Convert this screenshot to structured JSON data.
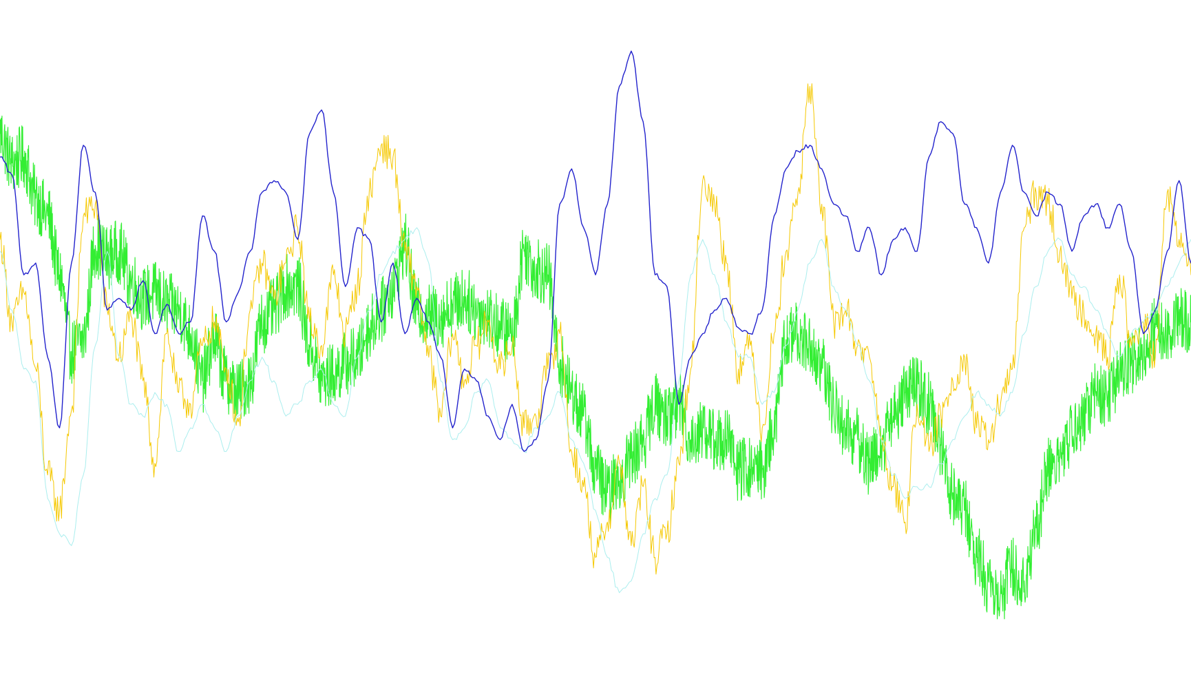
{
  "chart_data": {
    "type": "line",
    "title": "",
    "xlabel": "",
    "ylabel": "",
    "grid": false,
    "legend": "none",
    "xlim": [
      0,
      1000
    ],
    "ylim": [
      0,
      100
    ],
    "series": [
      {
        "color": "#33ee33",
        "x": [
          0,
          10,
          20,
          30,
          40,
          50,
          60,
          70,
          80,
          90,
          100,
          110,
          120,
          130,
          140,
          150,
          160,
          170,
          180,
          190,
          200,
          210,
          220,
          230,
          240,
          250,
          260,
          270,
          280,
          290,
          300,
          310,
          320,
          330,
          340,
          350,
          360,
          370,
          380,
          390,
          400,
          410,
          420,
          430,
          440,
          450,
          460,
          470,
          480,
          490,
          500,
          510,
          520,
          530,
          540,
          550,
          560,
          570,
          580,
          590,
          600,
          610,
          620,
          630,
          640,
          650,
          660,
          670,
          680,
          690,
          700,
          710,
          720,
          730,
          740,
          750,
          760,
          770,
          780,
          790,
          800,
          810,
          820,
          830,
          840,
          850,
          860,
          870,
          880,
          890,
          900,
          910,
          920,
          930,
          940,
          950,
          960,
          970,
          980,
          990,
          1000
        ],
        "y": [
          82,
          77,
          78,
          71,
          68,
          58,
          45,
          47,
          63,
          61,
          62,
          57,
          54,
          55,
          53,
          52,
          48,
          40,
          47,
          40,
          38,
          40,
          50,
          52,
          56,
          56,
          46,
          40,
          41,
          43,
          44,
          49,
          52,
          56,
          63,
          52,
          51,
          51,
          53,
          54,
          52,
          51,
          49,
          48,
          62,
          59,
          58,
          43,
          38,
          34,
          25,
          21,
          23,
          27,
          30,
          36,
          34,
          36,
          30,
          32,
          30,
          30,
          25,
          25,
          25,
          32,
          47,
          48,
          46,
          42,
          36,
          32,
          30,
          26,
          29,
          34,
          38,
          39,
          36,
          29,
          21,
          18,
          10,
          6,
          4,
          8,
          6,
          15,
          25,
          27,
          31,
          34,
          38,
          37,
          41,
          43,
          44,
          49,
          48,
          51,
          50
        ]
      },
      {
        "color": "#f5c800",
        "x": [
          0,
          10,
          20,
          30,
          40,
          50,
          60,
          70,
          80,
          90,
          100,
          110,
          120,
          130,
          140,
          150,
          160,
          170,
          180,
          190,
          200,
          210,
          220,
          230,
          240,
          250,
          260,
          270,
          280,
          290,
          300,
          310,
          320,
          330,
          340,
          350,
          360,
          370,
          380,
          390,
          400,
          410,
          420,
          430,
          440,
          450,
          460,
          470,
          480,
          490,
          500,
          510,
          520,
          530,
          540,
          550,
          560,
          570,
          580,
          590,
          600,
          610,
          620,
          630,
          640,
          650,
          660,
          670,
          680,
          690,
          700,
          710,
          720,
          730,
          740,
          750,
          760,
          770,
          780,
          790,
          800,
          810,
          820,
          830,
          840,
          850,
          860,
          870,
          880,
          890,
          900,
          910,
          920,
          930,
          940,
          950,
          960,
          970,
          980,
          990,
          1000
        ],
        "y": [
          64,
          50,
          55,
          42,
          24,
          18,
          35,
          68,
          70,
          52,
          44,
          51,
          40,
          26,
          48,
          38,
          36,
          46,
          50,
          42,
          33,
          52,
          60,
          54,
          60,
          66,
          50,
          46,
          58,
          48,
          56,
          72,
          80,
          78,
          62,
          56,
          44,
          34,
          48,
          40,
          46,
          50,
          42,
          46,
          32,
          34,
          42,
          48,
          28,
          22,
          10,
          16,
          26,
          12,
          22,
          10,
          14,
          26,
          42,
          74,
          70,
          60,
          42,
          46,
          32,
          48,
          62,
          72,
          90,
          70,
          50,
          52,
          46,
          44,
          30,
          22,
          16,
          36,
          28,
          34,
          40,
          44,
          32,
          30,
          36,
          42,
          66,
          72,
          70,
          62,
          54,
          52,
          48,
          44,
          58,
          46,
          50,
          44,
          72,
          64,
          58
        ]
      },
      {
        "color": "#aaeeee",
        "x": [
          0,
          10,
          20,
          30,
          40,
          50,
          60,
          70,
          80,
          90,
          100,
          110,
          120,
          130,
          140,
          150,
          160,
          170,
          180,
          190,
          200,
          210,
          220,
          230,
          240,
          250,
          260,
          270,
          280,
          290,
          300,
          310,
          320,
          330,
          340,
          350,
          360,
          370,
          380,
          390,
          400,
          410,
          420,
          430,
          440,
          450,
          460,
          470,
          480,
          490,
          500,
          510,
          520,
          530,
          540,
          550,
          560,
          570,
          580,
          590,
          600,
          610,
          620,
          630,
          640,
          650,
          660,
          670,
          680,
          690,
          700,
          710,
          720,
          730,
          740,
          750,
          760,
          770,
          780,
          790,
          800,
          810,
          820,
          830,
          840,
          850,
          860,
          870,
          880,
          890,
          900,
          910,
          920,
          930,
          940,
          950,
          960,
          970,
          980,
          990,
          1000
        ],
        "y": [
          62,
          52,
          42,
          40,
          20,
          14,
          12,
          24,
          46,
          62,
          44,
          36,
          34,
          38,
          36,
          28,
          32,
          36,
          32,
          28,
          34,
          40,
          44,
          40,
          34,
          36,
          40,
          42,
          36,
          34,
          44,
          52,
          58,
          62,
          64,
          66,
          60,
          40,
          30,
          32,
          38,
          40,
          32,
          30,
          28,
          32,
          34,
          38,
          30,
          26,
          18,
          10,
          4,
          6,
          14,
          20,
          24,
          40,
          58,
          64,
          58,
          50,
          44,
          44,
          36,
          38,
          46,
          52,
          60,
          64,
          56,
          52,
          46,
          40,
          30,
          24,
          20,
          22,
          22,
          26,
          30,
          34,
          38,
          36,
          34,
          38,
          48,
          56,
          62,
          64,
          58,
          56,
          52,
          48,
          44,
          48,
          50,
          52,
          56,
          60,
          64
        ]
      },
      {
        "color": "#2222cc",
        "x": [
          0,
          10,
          20,
          30,
          40,
          50,
          60,
          70,
          80,
          90,
          100,
          110,
          120,
          130,
          140,
          150,
          160,
          170,
          180,
          190,
          200,
          210,
          220,
          230,
          240,
          250,
          260,
          270,
          280,
          290,
          300,
          310,
          320,
          330,
          340,
          350,
          360,
          370,
          380,
          390,
          400,
          410,
          420,
          430,
          440,
          450,
          460,
          470,
          480,
          490,
          500,
          510,
          520,
          530,
          540,
          550,
          560,
          570,
          580,
          590,
          600,
          610,
          620,
          630,
          640,
          650,
          660,
          670,
          680,
          690,
          700,
          710,
          720,
          730,
          740,
          750,
          760,
          770,
          780,
          790,
          800,
          810,
          820,
          830,
          840,
          850,
          860,
          870,
          880,
          890,
          900,
          910,
          920,
          930,
          940,
          950,
          960,
          970,
          980,
          990,
          1000
        ],
        "y": [
          78,
          75,
          58,
          60,
          44,
          32,
          60,
          80,
          72,
          52,
          54,
          52,
          57,
          48,
          53,
          48,
          50,
          68,
          62,
          50,
          55,
          62,
          72,
          74,
          72,
          64,
          82,
          86,
          72,
          56,
          66,
          64,
          50,
          60,
          48,
          54,
          50,
          44,
          32,
          42,
          40,
          34,
          30,
          36,
          28,
          30,
          40,
          70,
          76,
          66,
          58,
          70,
          90,
          96,
          84,
          58,
          56,
          36,
          44,
          48,
          52,
          54,
          49,
          48,
          52,
          68,
          76,
          79,
          80,
          76,
          70,
          68,
          62,
          66,
          58,
          64,
          66,
          62,
          78,
          84,
          82,
          70,
          66,
          60,
          72,
          80,
          72,
          68,
          72,
          70,
          62,
          68,
          70,
          66,
          70,
          62,
          48,
          52,
          62,
          74,
          60
        ]
      }
    ]
  }
}
